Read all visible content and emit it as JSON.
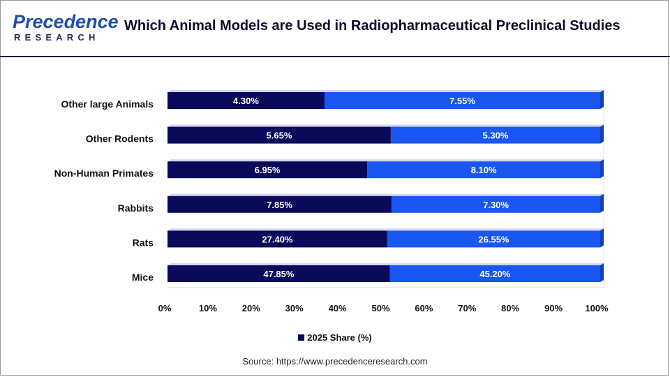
{
  "header": {
    "logo_top": "Precedence",
    "logo_bottom": "RESEARCH",
    "title": "Which Animal Models are Used in Radiopharmaceutical Preclinical Studies"
  },
  "chart_data": {
    "type": "bar",
    "orientation": "horizontal",
    "stacked": true,
    "percent_stacked": true,
    "categories": [
      "Other large Animals",
      "Other Rodents",
      "Non-Human Primates",
      "Rabbits",
      "Rats",
      "Mice"
    ],
    "series": [
      {
        "name": "2025 Share (%)",
        "values": [
          4.3,
          5.65,
          6.95,
          7.85,
          27.4,
          47.85
        ],
        "labels": [
          "4.30%",
          "5.65%",
          "6.95%",
          "7.85%",
          "27.40%",
          "47.85%"
        ],
        "color": "#0a0a5a"
      },
      {
        "name": "",
        "values": [
          7.55,
          5.3,
          8.1,
          7.3,
          26.55,
          45.2
        ],
        "labels": [
          "7.55%",
          "5.30%",
          "8.10%",
          "7.30%",
          "26.55%",
          "45.20%"
        ],
        "color": "#1a56f0"
      }
    ],
    "x_ticks": [
      "0%",
      "10%",
      "20%",
      "30%",
      "40%",
      "50%",
      "60%",
      "70%",
      "80%",
      "90%",
      "100%"
    ],
    "xlim": [
      0,
      100
    ],
    "legend": {
      "position": "bottom",
      "entries": [
        "2025 Share (%)"
      ]
    },
    "grid": false
  },
  "source": "Source: https://www.precedenceresearch.com"
}
